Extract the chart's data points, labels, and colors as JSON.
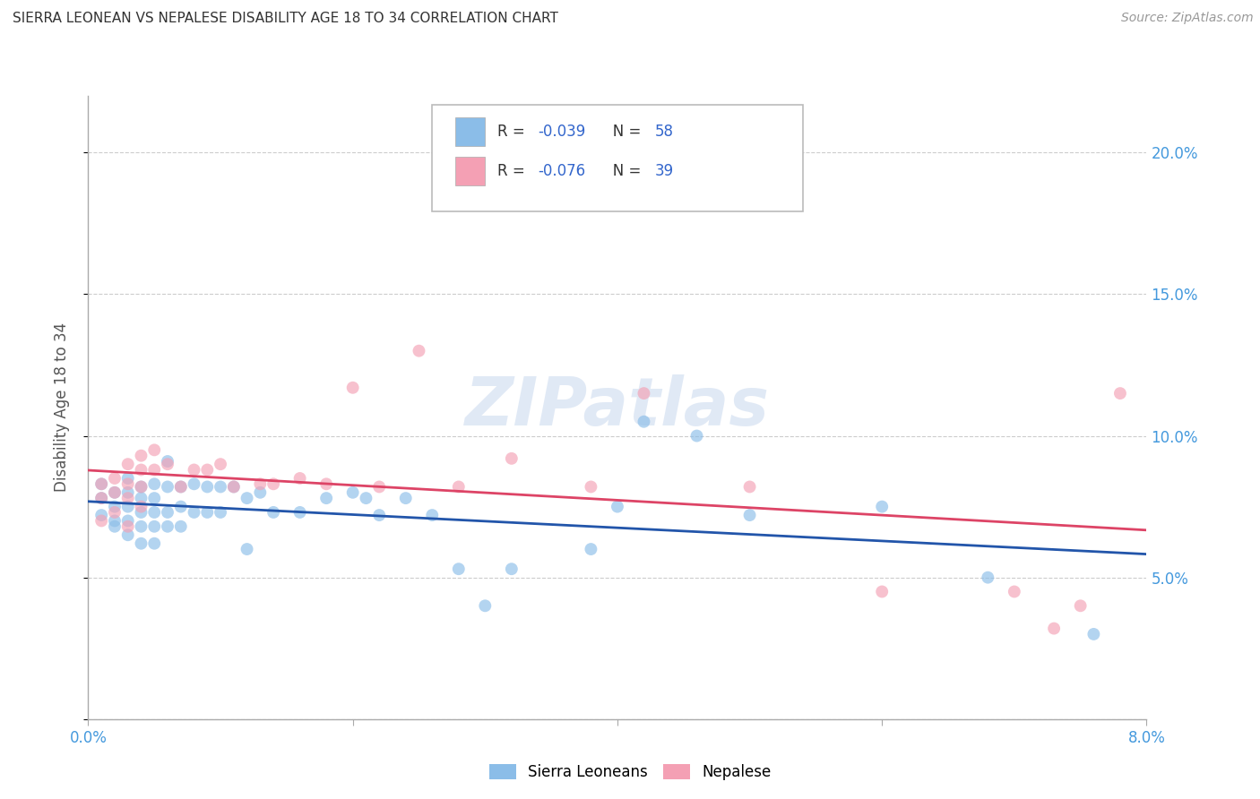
{
  "title": "SIERRA LEONEAN VS NEPALESE DISABILITY AGE 18 TO 34 CORRELATION CHART",
  "source": "Source: ZipAtlas.com",
  "ylabel": "Disability Age 18 to 34",
  "xlim": [
    0.0,
    0.08
  ],
  "ylim": [
    0.0,
    0.22
  ],
  "yticks": [
    0.0,
    0.05,
    0.1,
    0.15,
    0.2
  ],
  "right_ytick_labels": [
    "",
    "5.0%",
    "10.0%",
    "15.0%",
    "20.0%"
  ],
  "xticks": [
    0.0,
    0.02,
    0.04,
    0.06,
    0.08
  ],
  "xtick_labels": [
    "0.0%",
    "",
    "",
    "",
    "8.0%"
  ],
  "legend_label1": "Sierra Leoneans",
  "legend_label2": "Nepalese",
  "sl_color": "#8bbde8",
  "nep_color": "#f4a0b4",
  "sl_alpha": 0.65,
  "nep_alpha": 0.65,
  "sl_marker_size": 100,
  "nep_marker_size": 100,
  "sl_line_color": "#2255aa",
  "nep_line_color": "#dd4466",
  "watermark": "ZIPatlas",
  "background_color": "#ffffff",
  "grid_color": "#cccccc",
  "right_axis_color": "#4499dd",
  "title_color": "#333333",
  "sl_R": "-0.039",
  "sl_N": "58",
  "nep_R": "-0.076",
  "nep_N": "39",
  "sl_x": [
    0.001,
    0.001,
    0.001,
    0.002,
    0.002,
    0.002,
    0.002,
    0.003,
    0.003,
    0.003,
    0.003,
    0.003,
    0.004,
    0.004,
    0.004,
    0.004,
    0.004,
    0.005,
    0.005,
    0.005,
    0.005,
    0.005,
    0.006,
    0.006,
    0.006,
    0.006,
    0.007,
    0.007,
    0.007,
    0.008,
    0.008,
    0.009,
    0.009,
    0.01,
    0.01,
    0.011,
    0.012,
    0.012,
    0.013,
    0.014,
    0.016,
    0.018,
    0.02,
    0.021,
    0.022,
    0.024,
    0.026,
    0.028,
    0.03,
    0.032,
    0.038,
    0.04,
    0.042,
    0.046,
    0.05,
    0.06,
    0.068,
    0.076
  ],
  "sl_y": [
    0.083,
    0.078,
    0.072,
    0.08,
    0.075,
    0.07,
    0.068,
    0.085,
    0.08,
    0.075,
    0.07,
    0.065,
    0.082,
    0.078,
    0.073,
    0.068,
    0.062,
    0.083,
    0.078,
    0.073,
    0.068,
    0.062,
    0.091,
    0.082,
    0.073,
    0.068,
    0.082,
    0.075,
    0.068,
    0.083,
    0.073,
    0.082,
    0.073,
    0.082,
    0.073,
    0.082,
    0.078,
    0.06,
    0.08,
    0.073,
    0.073,
    0.078,
    0.08,
    0.078,
    0.072,
    0.078,
    0.072,
    0.053,
    0.04,
    0.053,
    0.06,
    0.075,
    0.105,
    0.1,
    0.072,
    0.075,
    0.05,
    0.03
  ],
  "nep_x": [
    0.001,
    0.001,
    0.001,
    0.002,
    0.002,
    0.002,
    0.003,
    0.003,
    0.003,
    0.003,
    0.004,
    0.004,
    0.004,
    0.004,
    0.005,
    0.005,
    0.006,
    0.007,
    0.008,
    0.009,
    0.01,
    0.011,
    0.013,
    0.014,
    0.016,
    0.018,
    0.02,
    0.022,
    0.025,
    0.028,
    0.032,
    0.038,
    0.042,
    0.05,
    0.06,
    0.07,
    0.073,
    0.075,
    0.078
  ],
  "nep_y": [
    0.083,
    0.078,
    0.07,
    0.085,
    0.08,
    0.073,
    0.09,
    0.083,
    0.078,
    0.068,
    0.093,
    0.088,
    0.082,
    0.075,
    0.095,
    0.088,
    0.09,
    0.082,
    0.088,
    0.088,
    0.09,
    0.082,
    0.083,
    0.083,
    0.085,
    0.083,
    0.117,
    0.082,
    0.13,
    0.082,
    0.092,
    0.082,
    0.115,
    0.082,
    0.045,
    0.045,
    0.032,
    0.04,
    0.115
  ]
}
